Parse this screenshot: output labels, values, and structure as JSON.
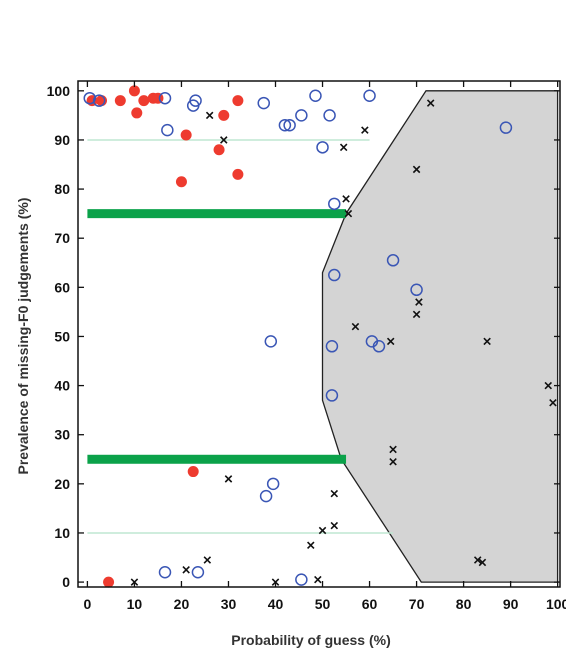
{
  "chart_data": {
    "type": "scatter",
    "title": "",
    "xlabel": "Probability of guess (%)",
    "ylabel": "Prevalence of missing-F0 judgements (%)",
    "xlim": [
      -2,
      100.5
    ],
    "ylim": [
      -1,
      102
    ],
    "x_ticks": [
      0,
      10,
      20,
      30,
      40,
      50,
      60,
      70,
      80,
      90,
      100
    ],
    "y_ticks": [
      0,
      10,
      20,
      30,
      40,
      50,
      60,
      70,
      80,
      90,
      100
    ],
    "grid": false,
    "legend": "none",
    "colors": {
      "filled": "#ee3b2f",
      "open": "#3a56b5",
      "cross": "#111111",
      "region_fill": "#d4d4d4",
      "region_edge": "#222222",
      "band": "#0ba24a",
      "thin_line": "#bfe7d2"
    },
    "shaded_region": [
      [
        72,
        100
      ],
      [
        100,
        100
      ],
      [
        100,
        0
      ],
      [
        71,
        0
      ],
      [
        54,
        25
      ],
      [
        50,
        37
      ],
      [
        50,
        63
      ],
      [
        55,
        75
      ],
      [
        72,
        100
      ]
    ],
    "horizontal_bands": [
      {
        "y": 75,
        "x_from": 0,
        "x_to": 55
      },
      {
        "y": 25,
        "x_from": 0,
        "x_to": 55
      }
    ],
    "horizontal_lines": [
      {
        "y": 90,
        "x_from": 0,
        "x_to": 60
      },
      {
        "y": 10,
        "x_from": 0,
        "x_to": 65
      }
    ],
    "series": [
      {
        "marker": "filled-circle",
        "points": [
          [
            1,
            98
          ],
          [
            3,
            98
          ],
          [
            7,
            98
          ],
          [
            10,
            100
          ],
          [
            10.5,
            95.5
          ],
          [
            12,
            98
          ],
          [
            14,
            98.5
          ],
          [
            15,
            98.5
          ],
          [
            21,
            91
          ],
          [
            29,
            95
          ],
          [
            32,
            98
          ],
          [
            28,
            88
          ],
          [
            32,
            83
          ],
          [
            20,
            81.5
          ],
          [
            22.5,
            22.5
          ],
          [
            4.5,
            0
          ]
        ]
      },
      {
        "marker": "open-circle",
        "points": [
          [
            0.5,
            98.5
          ],
          [
            2.5,
            98
          ],
          [
            16.5,
            98.5
          ],
          [
            17,
            92
          ],
          [
            22.5,
            97
          ],
          [
            23,
            98
          ],
          [
            37.5,
            97.5
          ],
          [
            42,
            93
          ],
          [
            43,
            93
          ],
          [
            45.5,
            95
          ],
          [
            48.5,
            99
          ],
          [
            50,
            88.5
          ],
          [
            51.5,
            95
          ],
          [
            60,
            99
          ],
          [
            89,
            92.5
          ],
          [
            52.5,
            77
          ],
          [
            52.5,
            62.5
          ],
          [
            65,
            65.5
          ],
          [
            70,
            59.5
          ],
          [
            39,
            49
          ],
          [
            52,
            48
          ],
          [
            60.5,
            49
          ],
          [
            62,
            48
          ],
          [
            52,
            38
          ],
          [
            39.5,
            20
          ],
          [
            38,
            17.5
          ],
          [
            16.5,
            2
          ],
          [
            23.5,
            2
          ],
          [
            45.5,
            0.5
          ]
        ]
      },
      {
        "marker": "cross",
        "points": [
          [
            26,
            95
          ],
          [
            29,
            90
          ],
          [
            54.5,
            88.5
          ],
          [
            59,
            92
          ],
          [
            73,
            97.5
          ],
          [
            70,
            84
          ],
          [
            55,
            78
          ],
          [
            55.5,
            75
          ],
          [
            57,
            52
          ],
          [
            70.5,
            57
          ],
          [
            70,
            54.5
          ],
          [
            64.5,
            49
          ],
          [
            85,
            49
          ],
          [
            98,
            40
          ],
          [
            99,
            36.5
          ],
          [
            65,
            27
          ],
          [
            65,
            24.5
          ],
          [
            30,
            21
          ],
          [
            52.5,
            18
          ],
          [
            52.5,
            11.5
          ],
          [
            50,
            10.5
          ],
          [
            47.5,
            7.5
          ],
          [
            83,
            4.5
          ],
          [
            84,
            4
          ],
          [
            21,
            2.5
          ],
          [
            25.5,
            4.5
          ],
          [
            10,
            0
          ],
          [
            40,
            0
          ],
          [
            49,
            0.5
          ]
        ]
      }
    ]
  }
}
